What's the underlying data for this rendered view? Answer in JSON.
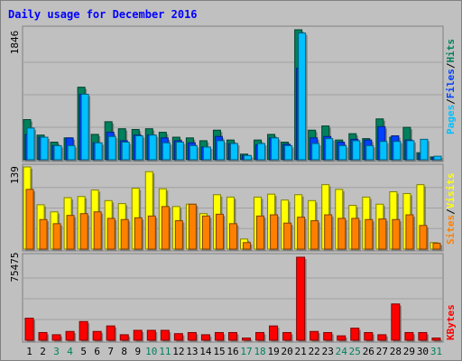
{
  "title": "Daily usage for December 2016",
  "colors": {
    "background": "#c0c0c0",
    "plot_background": "#c0c0c0",
    "hits": "#00805c",
    "files": "#0040ff",
    "pages": "#00c0ff",
    "visits": "#ffff00",
    "sites": "#ff8000",
    "kbytes": "#ff0000",
    "title": "#0000ff",
    "weekend_label": "#00805c"
  },
  "chart_data": [
    {
      "type": "bar",
      "name": "hits-files-pages",
      "max_label": "1846",
      "ylim": [
        0,
        1846
      ],
      "legend": [
        "Pages",
        "Files",
        "Hits"
      ],
      "categories": [
        "1",
        "2",
        "3",
        "4",
        "5",
        "6",
        "7",
        "8",
        "9",
        "10",
        "11",
        "12",
        "13",
        "14",
        "15",
        "16",
        "17",
        "18",
        "19",
        "20",
        "21",
        "22",
        "23",
        "24",
        "25",
        "26",
        "27",
        "28",
        "29",
        "30",
        "31"
      ],
      "weekend_days": [
        "3",
        "4",
        "10",
        "11",
        "17",
        "18",
        "24",
        "25",
        "31"
      ],
      "series": [
        {
          "name": "Hits",
          "values": [
            570,
            350,
            250,
            310,
            1030,
            360,
            540,
            440,
            430,
            440,
            390,
            320,
            310,
            270,
            420,
            280,
            80,
            280,
            360,
            250,
            1846,
            420,
            480,
            280,
            370,
            300,
            580,
            320,
            460,
            100,
            40
          ]
        },
        {
          "name": "Files",
          "values": [
            360,
            320,
            200,
            310,
            930,
            240,
            390,
            270,
            350,
            350,
            310,
            270,
            240,
            180,
            330,
            230,
            60,
            210,
            310,
            220,
            1300,
            310,
            330,
            250,
            290,
            280,
            470,
            340,
            280,
            80,
            30
          ]
        },
        {
          "name": "Pages",
          "values": [
            450,
            320,
            200,
            200,
            930,
            240,
            330,
            250,
            340,
            350,
            240,
            250,
            200,
            180,
            270,
            230,
            60,
            230,
            310,
            200,
            1800,
            230,
            300,
            200,
            270,
            200,
            260,
            260,
            270,
            290,
            50
          ]
        }
      ]
    },
    {
      "type": "bar",
      "name": "visits-sites",
      "max_label": "139",
      "ylim": [
        0,
        139
      ],
      "legend": [
        "Sites",
        "Visits"
      ],
      "categories": [
        "1",
        "2",
        "3",
        "4",
        "5",
        "6",
        "7",
        "8",
        "9",
        "10",
        "11",
        "12",
        "13",
        "14",
        "15",
        "16",
        "17",
        "18",
        "19",
        "20",
        "21",
        "22",
        "23",
        "24",
        "25",
        "26",
        "27",
        "28",
        "29",
        "30",
        "31"
      ],
      "series": [
        {
          "name": "Visits",
          "values": [
            139,
            75,
            63,
            87,
            89,
            100,
            82,
            77,
            103,
            131,
            102,
            72,
            76,
            60,
            92,
            88,
            17,
            88,
            93,
            83,
            92,
            82,
            109,
            101,
            74,
            88,
            76,
            97,
            94,
            109,
            11
          ]
        },
        {
          "name": "Sites",
          "values": [
            101,
            50,
            43,
            57,
            60,
            63,
            52,
            50,
            53,
            56,
            72,
            48,
            76,
            56,
            59,
            43,
            11,
            56,
            58,
            44,
            54,
            48,
            58,
            52,
            52,
            50,
            51,
            50,
            58,
            40,
            10
          ]
        }
      ]
    },
    {
      "type": "bar",
      "name": "kbytes",
      "max_label": "75475",
      "ylim": [
        0,
        75475
      ],
      "legend": [
        "KBytes"
      ],
      "categories": [
        "1",
        "2",
        "3",
        "4",
        "5",
        "6",
        "7",
        "8",
        "9",
        "10",
        "11",
        "12",
        "13",
        "14",
        "15",
        "16",
        "17",
        "18",
        "19",
        "20",
        "21",
        "22",
        "23",
        "24",
        "25",
        "26",
        "27",
        "28",
        "29",
        "30",
        "31"
      ],
      "series": [
        {
          "name": "KBytes",
          "values": [
            20000,
            7000,
            5000,
            8000,
            17000,
            8000,
            13000,
            5000,
            9000,
            9000,
            9000,
            6000,
            7000,
            5000,
            7000,
            7000,
            2000,
            7000,
            13000,
            7000,
            75475,
            8000,
            7000,
            4000,
            11000,
            7000,
            5000,
            33000,
            7000,
            7000,
            2000
          ]
        }
      ]
    }
  ]
}
